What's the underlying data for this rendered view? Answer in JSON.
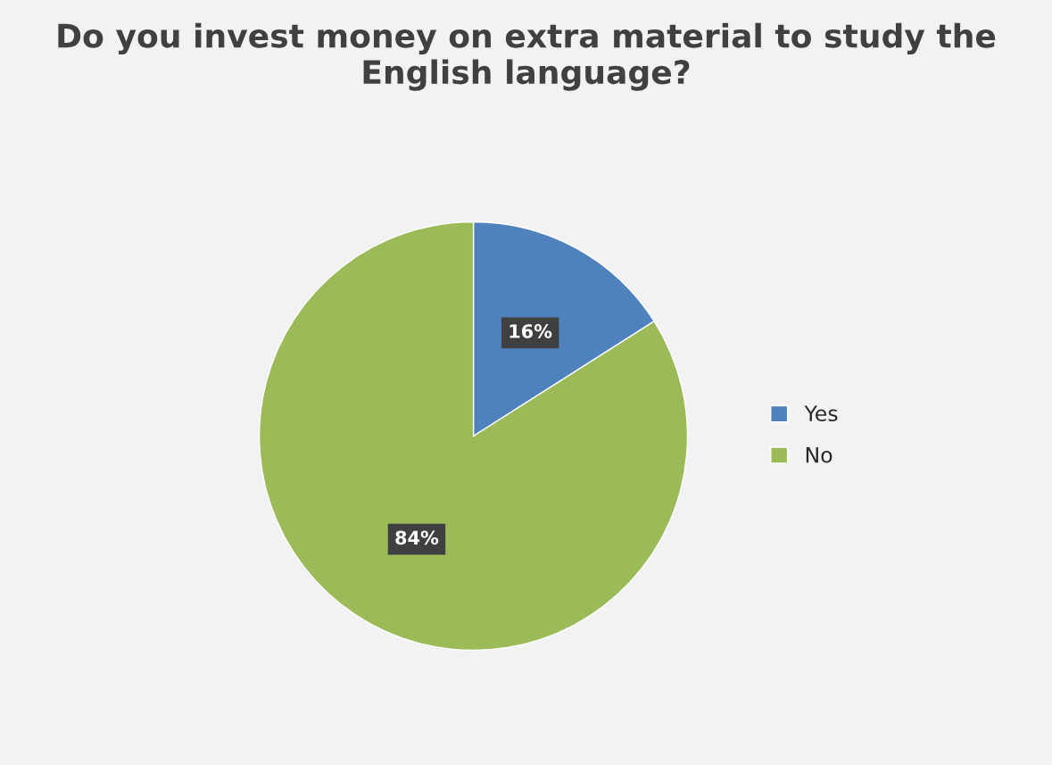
{
  "chart_data": {
    "type": "pie",
    "title": "Do you invest money on extra material to study the English language?",
    "categories": [
      "Yes",
      "No"
    ],
    "values": [
      16,
      84
    ],
    "colors": [
      "#4f81bd",
      "#9bbb59"
    ],
    "value_labels": [
      "16%",
      "84%"
    ],
    "legend": "right"
  }
}
